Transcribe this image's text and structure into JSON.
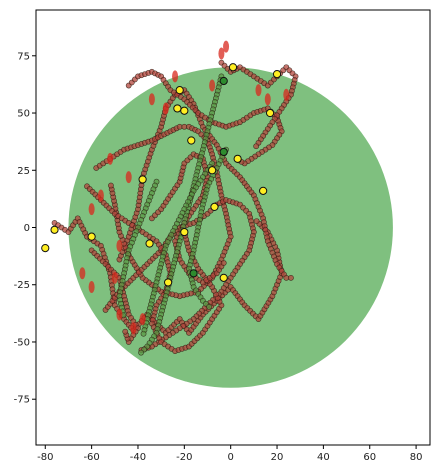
{
  "chart_data": {
    "type": "scatter",
    "title": "",
    "xlabel": "",
    "ylabel": "",
    "xlim": [
      -84,
      86
    ],
    "ylim": [
      -95,
      95
    ],
    "xticks": [
      -80,
      -60,
      -40,
      -20,
      0,
      20,
      40,
      60,
      80
    ],
    "yticks": [
      75,
      50,
      25,
      0,
      -25,
      -50,
      -75
    ],
    "grid": false,
    "legend": "none",
    "circle": {
      "cx": 0,
      "cy": 0,
      "r": 70,
      "color": "#7fc07f"
    },
    "colors": {
      "trail_red": "#b2453c",
      "trail_green": "#5a9a45",
      "marker_edge": "#2a1a10",
      "ellipse_red": "#d8281e",
      "start_yellow": "#ffee22",
      "start_green": "#2e8b2e"
    },
    "red_paths": [
      [
        [
          -76,
          2
        ],
        [
          -70,
          -2
        ],
        [
          -66,
          4
        ],
        [
          -62,
          -4
        ],
        [
          -56,
          -8
        ],
        [
          -52,
          -20
        ],
        [
          -50,
          -34
        ],
        [
          -46,
          -40
        ],
        [
          -42,
          -45
        ],
        [
          -36,
          -38
        ],
        [
          -28,
          -46
        ],
        [
          -22,
          -40
        ],
        [
          -18,
          -46
        ],
        [
          -12,
          -38
        ],
        [
          -6,
          -32
        ],
        [
          0,
          -26
        ],
        [
          6,
          -34
        ],
        [
          12,
          -40
        ],
        [
          18,
          -30
        ],
        [
          22,
          -20
        ],
        [
          20,
          -10
        ],
        [
          16,
          -2
        ],
        [
          10,
          4
        ]
      ],
      [
        [
          -48,
          -14
        ],
        [
          -44,
          -4
        ],
        [
          -40,
          8
        ],
        [
          -38,
          22
        ],
        [
          -34,
          34
        ],
        [
          -30,
          44
        ],
        [
          -28,
          52
        ],
        [
          -24,
          58
        ],
        [
          -20,
          60
        ],
        [
          -16,
          54
        ],
        [
          -12,
          44
        ],
        [
          -6,
          36
        ],
        [
          -2,
          28
        ],
        [
          4,
          22
        ],
        [
          10,
          14
        ],
        [
          14,
          4
        ],
        [
          16,
          -6
        ],
        [
          20,
          -16
        ],
        [
          24,
          -22
        ],
        [
          28,
          -22
        ]
      ],
      [
        [
          -58,
          26
        ],
        [
          -52,
          30
        ],
        [
          -46,
          34
        ],
        [
          -40,
          36
        ],
        [
          -34,
          38
        ],
        [
          -30,
          40
        ],
        [
          -26,
          42
        ],
        [
          -22,
          44
        ],
        [
          -18,
          44
        ],
        [
          -14,
          42
        ],
        [
          -10,
          38
        ],
        [
          -8,
          32
        ],
        [
          -6,
          24
        ],
        [
          -4,
          14
        ],
        [
          -2,
          6
        ],
        [
          0,
          -4
        ],
        [
          -4,
          -14
        ],
        [
          -8,
          -22
        ],
        [
          -14,
          -28
        ],
        [
          -22,
          -30
        ],
        [
          -30,
          -28
        ],
        [
          -38,
          -22
        ],
        [
          -44,
          -12
        ],
        [
          -48,
          -2
        ],
        [
          -50,
          10
        ],
        [
          -52,
          20
        ]
      ],
      [
        [
          -44,
          62
        ],
        [
          -40,
          66
        ],
        [
          -34,
          68
        ],
        [
          -30,
          66
        ],
        [
          -26,
          60
        ],
        [
          -20,
          56
        ],
        [
          -14,
          50
        ],
        [
          -8,
          46
        ],
        [
          -2,
          44
        ],
        [
          4,
          46
        ],
        [
          10,
          50
        ],
        [
          16,
          52
        ],
        [
          20,
          48
        ],
        [
          22,
          42
        ],
        [
          18,
          36
        ],
        [
          12,
          32
        ],
        [
          6,
          28
        ],
        [
          2,
          30
        ]
      ],
      [
        [
          -54,
          -36
        ],
        [
          -48,
          -28
        ],
        [
          -42,
          -22
        ],
        [
          -36,
          -16
        ],
        [
          -30,
          -10
        ],
        [
          -26,
          -4
        ],
        [
          -22,
          0
        ],
        [
          -16,
          2
        ],
        [
          -10,
          6
        ],
        [
          -6,
          10
        ],
        [
          -2,
          12
        ],
        [
          4,
          10
        ],
        [
          8,
          6
        ],
        [
          10,
          -2
        ],
        [
          8,
          -10
        ],
        [
          4,
          -16
        ],
        [
          0,
          -22
        ],
        [
          -4,
          -28
        ],
        [
          -10,
          -34
        ],
        [
          -16,
          -40
        ],
        [
          -22,
          -44
        ],
        [
          -28,
          -48
        ],
        [
          -34,
          -52
        ],
        [
          -40,
          -54
        ]
      ],
      [
        [
          -62,
          18
        ],
        [
          -56,
          12
        ],
        [
          -50,
          6
        ],
        [
          -44,
          2
        ],
        [
          -38,
          -2
        ],
        [
          -32,
          -6
        ],
        [
          -28,
          -12
        ],
        [
          -26,
          -20
        ],
        [
          -28,
          -28
        ],
        [
          -32,
          -34
        ],
        [
          -34,
          -42
        ],
        [
          -30,
          -50
        ],
        [
          -24,
          -54
        ],
        [
          -18,
          -52
        ],
        [
          -12,
          -46
        ],
        [
          -8,
          -40
        ],
        [
          -4,
          -34
        ],
        [
          -8,
          -26
        ],
        [
          -14,
          -18
        ],
        [
          -18,
          -10
        ],
        [
          -20,
          -2
        ]
      ],
      [
        [
          -4,
          72
        ],
        [
          0,
          68
        ],
        [
          4,
          70
        ],
        [
          10,
          66
        ],
        [
          16,
          62
        ],
        [
          20,
          66
        ],
        [
          24,
          70
        ],
        [
          28,
          66
        ],
        [
          26,
          58
        ],
        [
          22,
          52
        ],
        [
          18,
          46
        ],
        [
          14,
          40
        ],
        [
          10,
          34
        ]
      ],
      [
        [
          -60,
          -10
        ],
        [
          -54,
          -16
        ],
        [
          -48,
          -22
        ],
        [
          -46,
          -30
        ],
        [
          -44,
          -38
        ],
        [
          -40,
          -44
        ],
        [
          -44,
          -50
        ],
        [
          -46,
          -44
        ]
      ],
      [
        [
          -34,
          4
        ],
        [
          -30,
          8
        ],
        [
          -26,
          14
        ],
        [
          -22,
          20
        ],
        [
          -20,
          28
        ],
        [
          -16,
          32
        ],
        [
          -12,
          30
        ],
        [
          -10,
          22
        ],
        [
          -12,
          14
        ],
        [
          -16,
          8
        ],
        [
          -20,
          2
        ],
        [
          -24,
          -6
        ],
        [
          -22,
          -14
        ],
        [
          -18,
          -20
        ],
        [
          -12,
          -24
        ],
        [
          -6,
          -20
        ],
        [
          -2,
          -14
        ]
      ]
    ],
    "green_paths": [
      [
        [
          -4,
          66
        ],
        [
          -6,
          58
        ],
        [
          -8,
          50
        ],
        [
          -10,
          42
        ],
        [
          -12,
          34
        ],
        [
          -14,
          26
        ],
        [
          -16,
          18
        ],
        [
          -18,
          10
        ],
        [
          -20,
          2
        ],
        [
          -22,
          -6
        ],
        [
          -24,
          -14
        ],
        [
          -26,
          -22
        ],
        [
          -28,
          -30
        ],
        [
          -30,
          -38
        ],
        [
          -32,
          -46
        ],
        [
          -36,
          -52
        ],
        [
          -40,
          -56
        ]
      ],
      [
        [
          -8,
          28
        ],
        [
          -12,
          22
        ],
        [
          -16,
          16
        ],
        [
          -20,
          8
        ],
        [
          -24,
          0
        ],
        [
          -28,
          -8
        ],
        [
          -30,
          -16
        ],
        [
          -32,
          -24
        ],
        [
          -34,
          -32
        ],
        [
          -36,
          -40
        ],
        [
          -38,
          -48
        ]
      ],
      [
        [
          -2,
          34
        ],
        [
          -6,
          26
        ],
        [
          -10,
          18
        ],
        [
          -12,
          10
        ],
        [
          -14,
          0
        ],
        [
          -16,
          -10
        ],
        [
          -18,
          -18
        ],
        [
          -16,
          -26
        ],
        [
          -12,
          -32
        ],
        [
          -8,
          -36
        ]
      ],
      [
        [
          -32,
          20
        ],
        [
          -36,
          10
        ],
        [
          -40,
          0
        ],
        [
          -44,
          -10
        ],
        [
          -46,
          -20
        ],
        [
          -48,
          -30
        ],
        [
          -46,
          -40
        ]
      ]
    ],
    "ellipses": [
      [
        -52,
        30
      ],
      [
        -44,
        22
      ],
      [
        -24,
        66
      ],
      [
        -34,
        56
      ],
      [
        -8,
        62
      ],
      [
        16,
        56
      ],
      [
        24,
        58
      ],
      [
        -4,
        76
      ],
      [
        -2,
        79
      ],
      [
        -42,
        -44
      ],
      [
        -38,
        -40
      ],
      [
        -48,
        -38
      ],
      [
        -64,
        -20
      ],
      [
        -60,
        -26
      ],
      [
        -50,
        -22
      ],
      [
        -60,
        8
      ],
      [
        -28,
        52
      ],
      [
        12,
        60
      ],
      [
        -48,
        -8
      ],
      [
        -56,
        14
      ]
    ],
    "start_points_yellow": [
      [
        -76,
        -1
      ],
      [
        -80,
        -9
      ],
      [
        -60,
        -4
      ],
      [
        -38,
        21
      ],
      [
        -35,
        -7
      ],
      [
        -22,
        60
      ],
      [
        -23,
        52
      ],
      [
        -20,
        51
      ],
      [
        -17,
        38
      ],
      [
        -8,
        25
      ],
      [
        -7,
        9
      ],
      [
        -3,
        -22
      ],
      [
        3,
        30
      ],
      [
        1,
        70
      ],
      [
        14,
        16
      ],
      [
        17,
        50
      ],
      [
        20,
        67
      ],
      [
        -20,
        -2
      ],
      [
        -27,
        -24
      ]
    ],
    "start_points_green": [
      [
        -3,
        64
      ],
      [
        -3,
        33
      ],
      [
        -16,
        -20
      ]
    ]
  }
}
